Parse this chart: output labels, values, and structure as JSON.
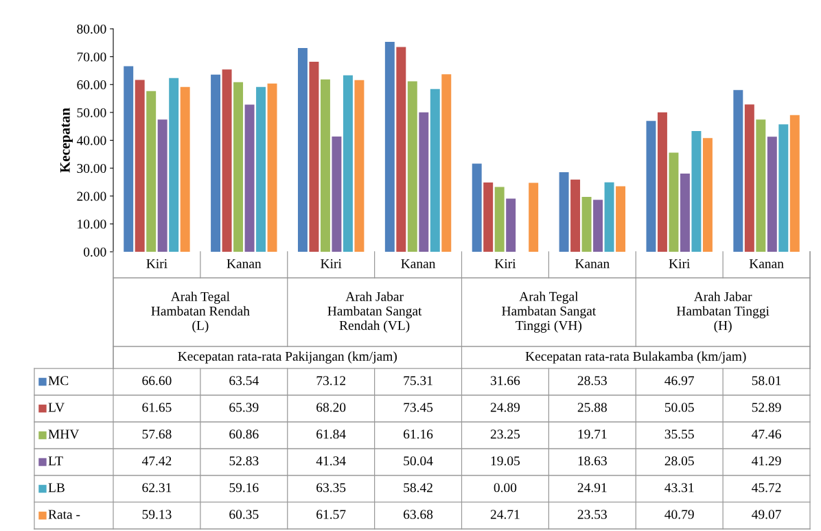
{
  "chart_data": {
    "type": "bar",
    "ylabel": "Kecepatan",
    "categories": [
      "Kiri",
      "Kanan",
      "Kiri",
      "Kanan",
      "Kiri",
      "Kanan",
      "Kiri",
      "Kanan"
    ],
    "annotations": [
      "Arah Tegal\nHambatan Rendah\n(L)",
      "Arah Jabar\nHambatan Sangat\nRendah (VL)",
      "Arah Tegal\nHambatan Sangat\nTinggi (VH)",
      "Arah Jabar\nHambatan Tinggi\n(H)",
      "Kecepatan rata-rata Pakijangan (km/jam)",
      "Kecepatan rata-rata Bulakamba (km/jam)"
    ],
    "series": [
      {
        "name": "MC",
        "color": "#4f81bd",
        "values": [
          66.6,
          63.54,
          73.12,
          75.31,
          31.66,
          28.53,
          46.97,
          58.01
        ],
        "value_labels": [
          "66.60",
          "63.54",
          "73.12",
          "75.31",
          "31.66",
          "28.53",
          "46.97",
          "58.01"
        ]
      },
      {
        "name": "LV",
        "color": "#c0504d",
        "values": [
          61.65,
          65.39,
          68.2,
          73.45,
          24.89,
          25.88,
          50.05,
          52.89
        ],
        "value_labels": [
          "61.65",
          "65.39",
          "68.20",
          "73.45",
          "24.89",
          "25.88",
          "50.05",
          "52.89"
        ]
      },
      {
        "name": "MHV",
        "color": "#9bbb59",
        "values": [
          57.68,
          60.86,
          61.84,
          61.16,
          23.25,
          19.71,
          35.55,
          47.46
        ],
        "value_labels": [
          "57.68",
          "60.86",
          "61.84",
          "61.16",
          "23.25",
          "19.71",
          "35.55",
          "47.46"
        ]
      },
      {
        "name": "LT",
        "color": "#8064a2",
        "values": [
          47.42,
          52.83,
          41.34,
          50.04,
          19.05,
          18.63,
          28.05,
          41.29
        ],
        "value_labels": [
          "47.42",
          "52.83",
          "41.34",
          "50.04",
          "19.05",
          "18.63",
          "28.05",
          "41.29"
        ]
      },
      {
        "name": "LB",
        "color": "#4bacc6",
        "values": [
          62.31,
          59.16,
          63.35,
          58.42,
          0.0,
          24.91,
          43.31,
          45.72
        ],
        "value_labels": [
          "62.31",
          "59.16",
          "63.35",
          "58.42",
          "0.00",
          "24.91",
          "43.31",
          "45.72"
        ]
      },
      {
        "name": "Rata -",
        "color": "#f79646",
        "values": [
          59.13,
          60.35,
          61.57,
          63.68,
          24.71,
          23.53,
          40.79,
          49.07
        ],
        "value_labels": [
          "59.13",
          "60.35",
          "61.57",
          "63.68",
          "24.71",
          "23.53",
          "40.79",
          "49.07"
        ]
      }
    ],
    "ylim": [
      0,
      80
    ],
    "yticks": [
      {
        "value": 0,
        "label": "0.00"
      },
      {
        "value": 10,
        "label": "10.00"
      },
      {
        "value": 20,
        "label": "20.00"
      },
      {
        "value": 30,
        "label": "30.00"
      },
      {
        "value": 40,
        "label": "40.00"
      },
      {
        "value": 50,
        "label": "50.00"
      },
      {
        "value": 60,
        "label": "60.00"
      },
      {
        "value": 70,
        "label": "70.00"
      },
      {
        "value": 80,
        "label": "80.00"
      }
    ],
    "legend": "bottom",
    "grid": false
  }
}
